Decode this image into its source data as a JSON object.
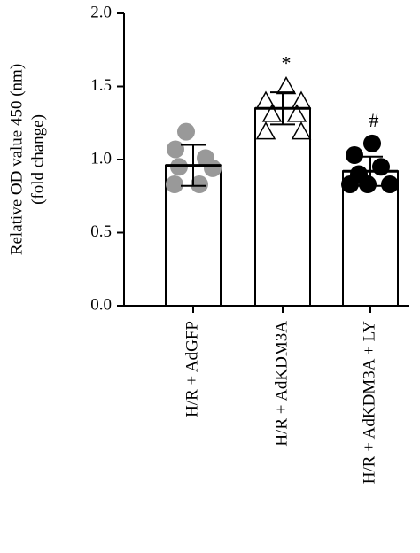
{
  "chart_data": {
    "type": "bar",
    "ylabel": [
      "Relative OD value 450 (nm)",
      "(fold change)"
    ],
    "categories": [
      "H/R + AdGFP",
      "H/R + AdKDM3A",
      "H/R + AdKDM3A + LY"
    ],
    "values": [
      0.96,
      1.35,
      0.92
    ],
    "errors": [
      0.14,
      0.11,
      0.1
    ],
    "bar_color": "#ffffff",
    "points": [
      [
        1.19,
        1.07,
        1.01,
        0.95,
        0.94,
        0.83,
        0.83
      ],
      [
        1.5,
        1.4,
        1.4,
        1.31,
        1.31,
        1.19,
        1.19
      ],
      [
        1.11,
        1.03,
        0.95,
        0.9,
        0.83,
        0.83,
        0.83
      ]
    ],
    "point_markers": [
      "circle",
      "triangle",
      "circle"
    ],
    "point_colors": [
      "#999999",
      "#ffffff",
      "#000000"
    ],
    "annotations": [
      {
        "category": "H/R + AdKDM3A",
        "text": "*"
      },
      {
        "category": "H/R + AdKDM3A + LY",
        "text": "#"
      }
    ],
    "ylim": [
      0,
      2
    ],
    "yticks": [
      {
        "value": 0,
        "label": "0.0"
      },
      {
        "value": 0.5,
        "label": "0.5"
      },
      {
        "value": 1,
        "label": "1.0"
      },
      {
        "value": 1.5,
        "label": "1.5"
      },
      {
        "value": 2,
        "label": "2.0"
      }
    ]
  }
}
